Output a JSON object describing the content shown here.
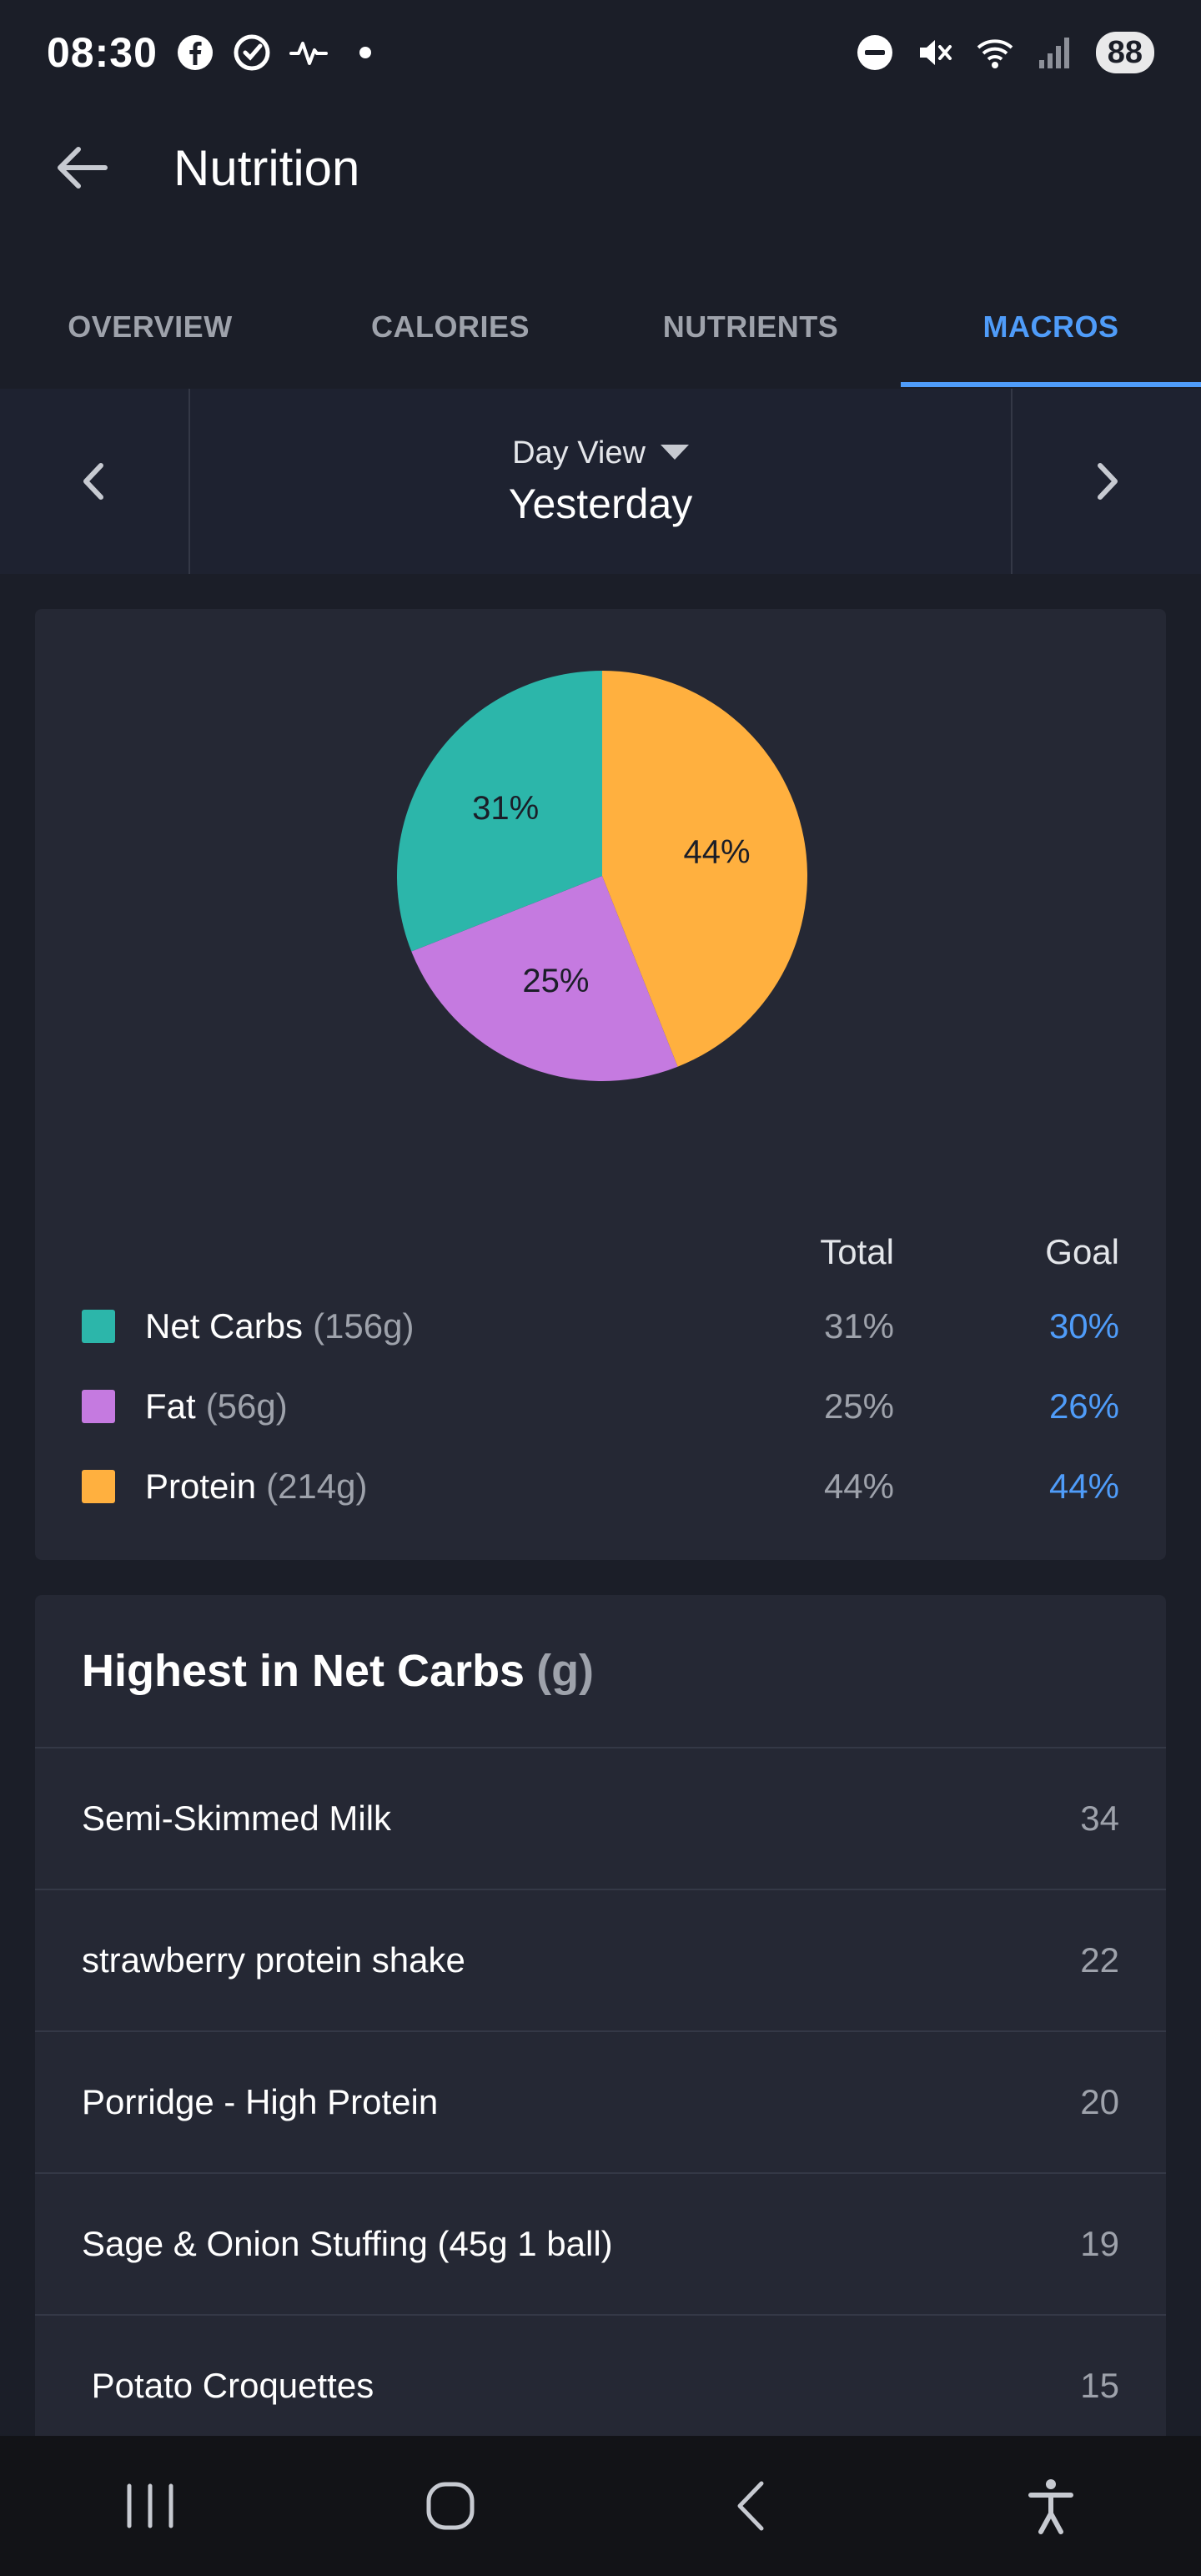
{
  "status_bar": {
    "time": "08:30",
    "battery": "88",
    "left_icons": [
      "facebook-icon",
      "sync-check-icon",
      "activity-pulse-icon",
      "dot-icon"
    ],
    "right_icons": [
      "do-not-disturb-icon",
      "mute-icon",
      "wifi-icon",
      "signal-icon"
    ]
  },
  "app_bar": {
    "title": "Nutrition"
  },
  "tabs": [
    {
      "label": "OVERVIEW",
      "active": false
    },
    {
      "label": "CALORIES",
      "active": false
    },
    {
      "label": "NUTRIENTS",
      "active": false
    },
    {
      "label": "MACROS",
      "active": true
    }
  ],
  "date_nav": {
    "view_label": "Day View",
    "date_label": "Yesterday"
  },
  "colors": {
    "net_carbs": "#2cb6aa",
    "fat": "#c57ae0",
    "protein": "#ffb03f",
    "accent": "#4f9cf9"
  },
  "chart_data": {
    "type": "pie",
    "slices": [
      {
        "name": "Protein",
        "value": 44,
        "label": "44%",
        "color": "#ffb03f"
      },
      {
        "name": "Fat",
        "value": 25,
        "label": "25%",
        "color": "#c57ae0"
      },
      {
        "name": "Net Carbs",
        "value": 31,
        "label": "31%",
        "color": "#2cb6aa"
      }
    ]
  },
  "legend": {
    "total_header": "Total",
    "goal_header": "Goal",
    "rows": [
      {
        "name": "Net Carbs",
        "grams": "(156g)",
        "total": "31%",
        "goal": "30%"
      },
      {
        "name": "Fat",
        "grams": "(56g)",
        "total": "25%",
        "goal": "26%"
      },
      {
        "name": "Protein",
        "grams": "(214g)",
        "total": "44%",
        "goal": "44%"
      }
    ]
  },
  "highest_list": {
    "title": "Highest in Net Carbs",
    "unit": "(g)",
    "items": [
      {
        "name": "Semi-Skimmed Milk",
        "value": "34"
      },
      {
        "name": "strawberry protein shake",
        "value": "22"
      },
      {
        "name": "Porridge - High Protein",
        "value": "20"
      },
      {
        "name": "Sage & Onion Stuffing (45g 1 ball)",
        "value": "19"
      },
      {
        "name": " Potato Croquettes",
        "value": "15"
      }
    ]
  }
}
